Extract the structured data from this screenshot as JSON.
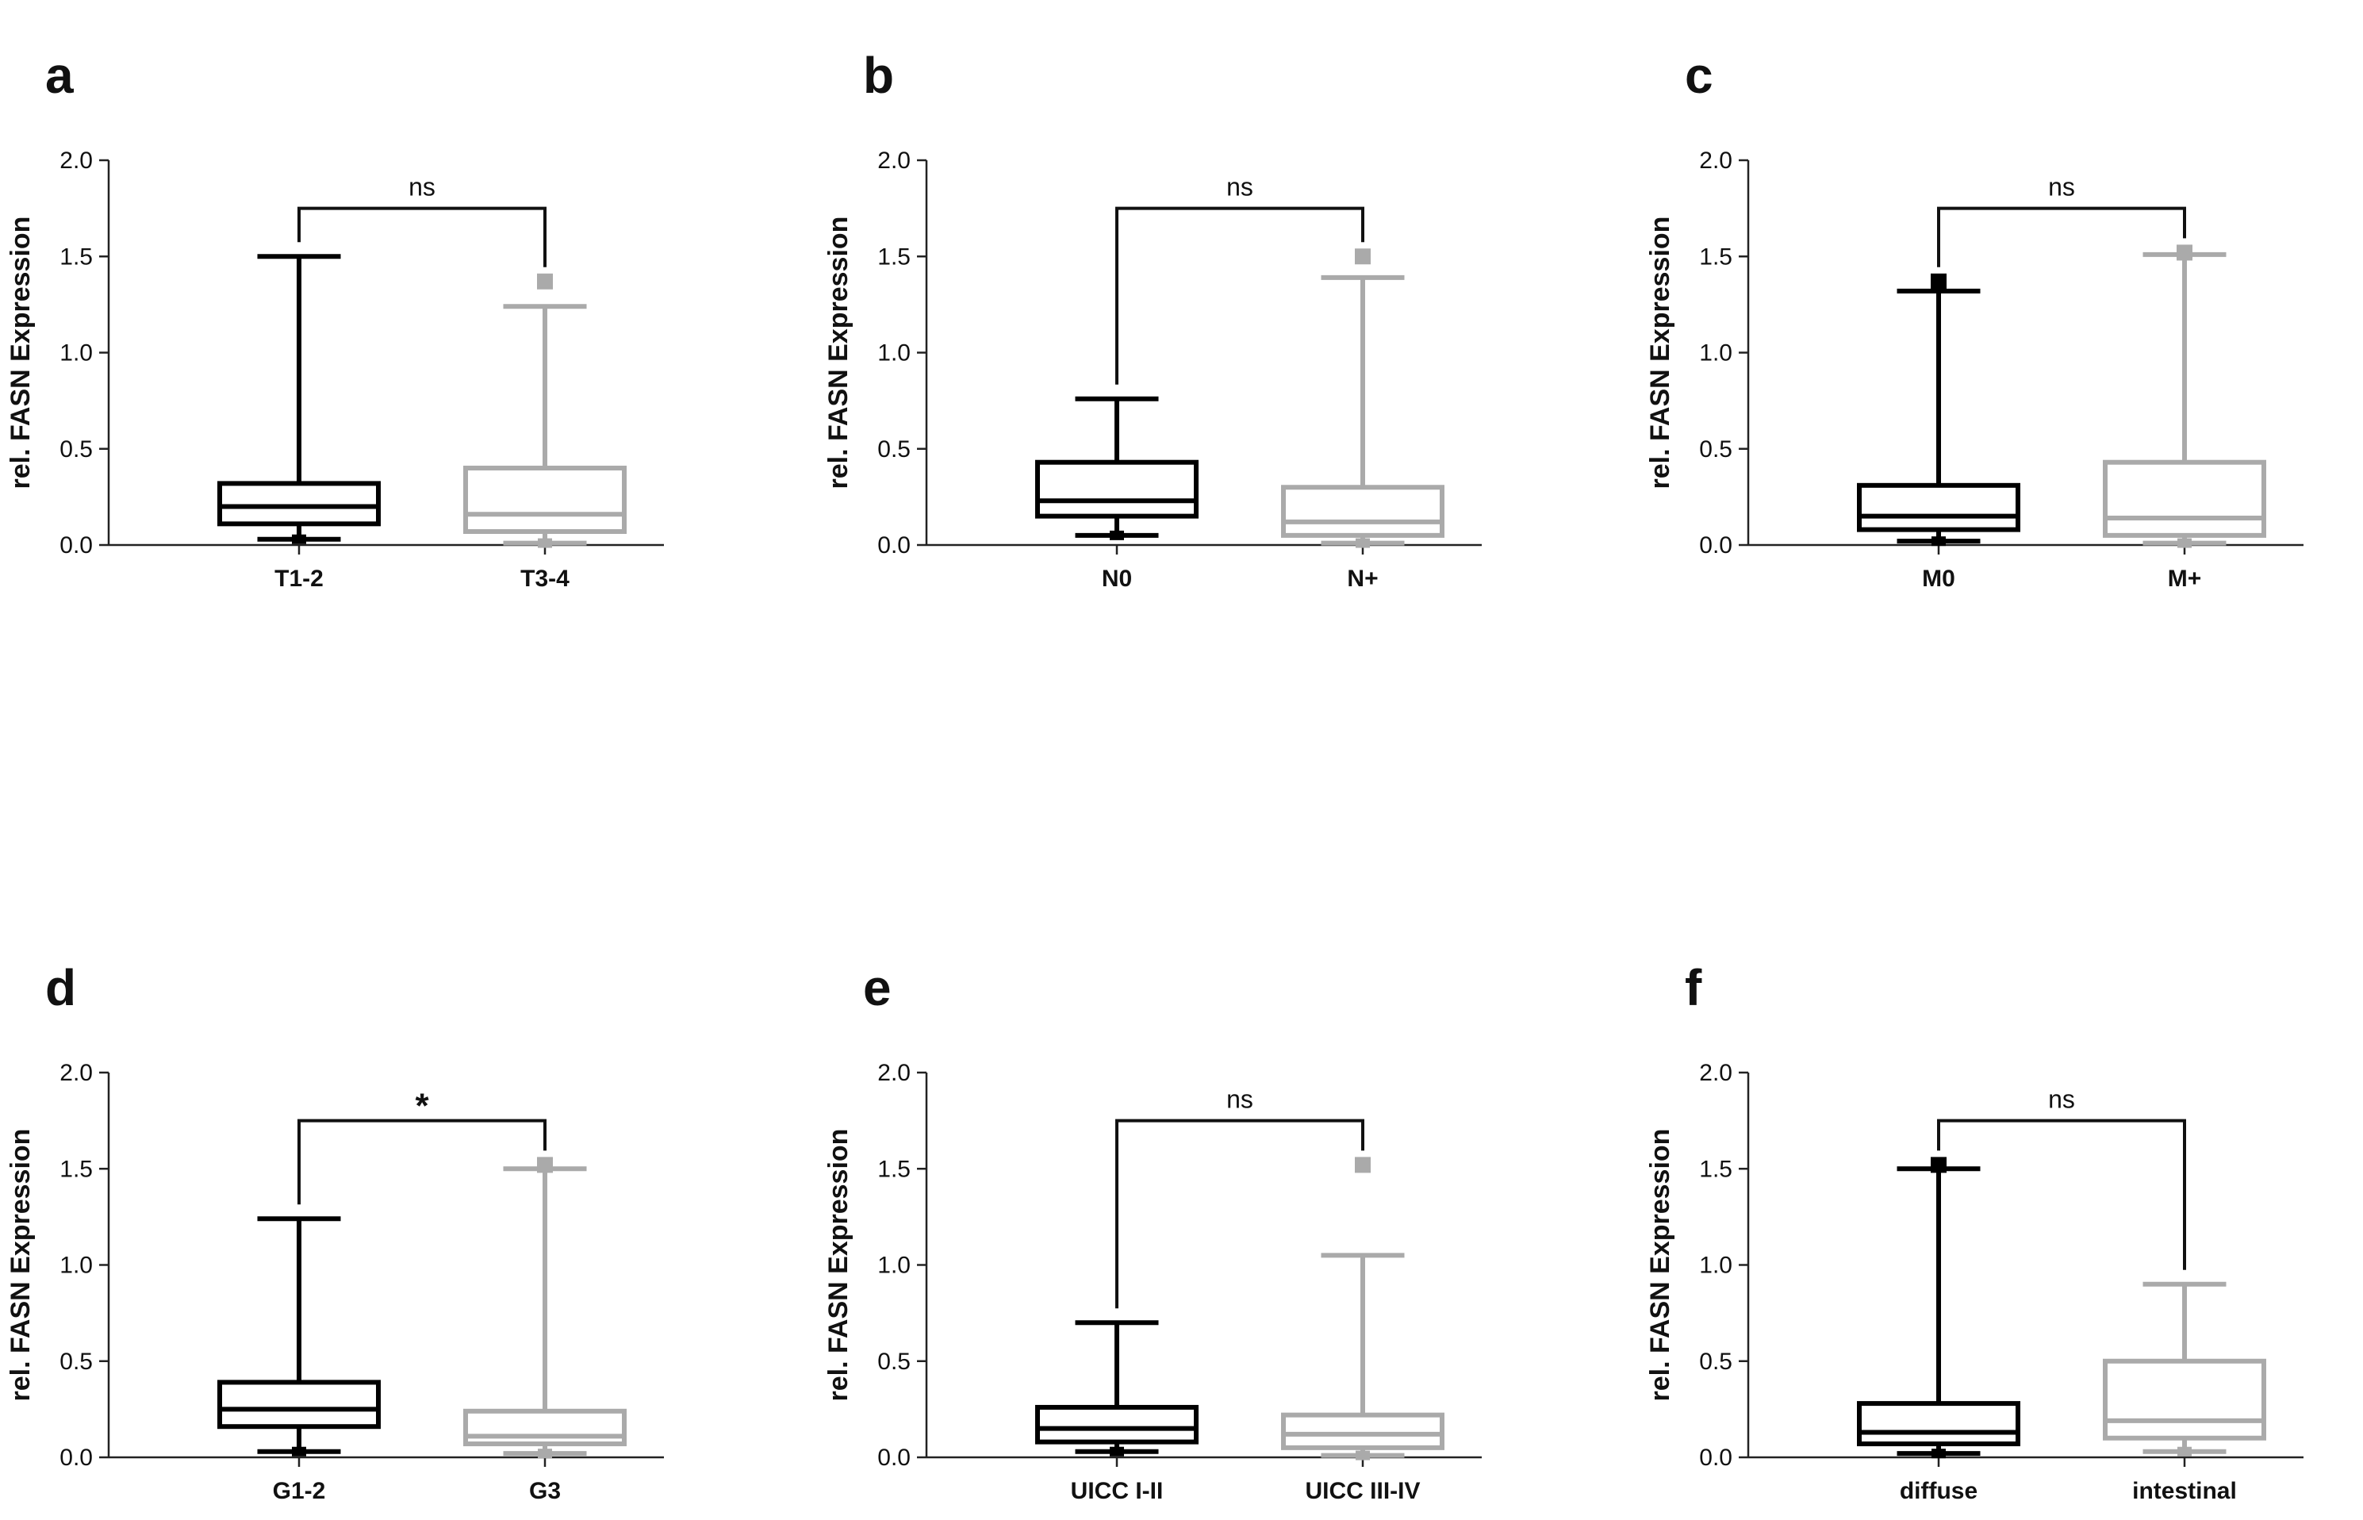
{
  "chart_data": [
    {
      "type": "boxplot",
      "panel": "a",
      "ylabel": "rel. FASN Expression",
      "ylim": [
        0,
        2.0
      ],
      "yticks": [
        "0.0",
        "0.5",
        "1.0",
        "1.5",
        "2.0"
      ],
      "significance": "ns",
      "groups": [
        {
          "name": "T1-2",
          "color": "#000000",
          "whisker_min": 0.03,
          "q1": 0.11,
          "median": 0.2,
          "q3": 0.32,
          "whisker_max": 1.5,
          "outliers": []
        },
        {
          "name": "T3-4",
          "color": "#aaaaaa",
          "whisker_min": 0.01,
          "q1": 0.07,
          "median": 0.16,
          "q3": 0.4,
          "whisker_max": 1.24,
          "outliers": [
            1.37
          ]
        }
      ]
    },
    {
      "type": "boxplot",
      "panel": "b",
      "ylabel": "rel. FASN Expression",
      "ylim": [
        0,
        2.0
      ],
      "yticks": [
        "0.0",
        "0.5",
        "1.0",
        "1.5",
        "2.0"
      ],
      "significance": "ns",
      "groups": [
        {
          "name": "N0",
          "color": "#000000",
          "whisker_min": 0.05,
          "q1": 0.15,
          "median": 0.23,
          "q3": 0.43,
          "whisker_max": 0.76,
          "outliers": []
        },
        {
          "name": "N+",
          "color": "#aaaaaa",
          "whisker_min": 0.01,
          "q1": 0.05,
          "median": 0.12,
          "q3": 0.3,
          "whisker_max": 1.39,
          "outliers": [
            1.5
          ]
        }
      ]
    },
    {
      "type": "boxplot",
      "panel": "c",
      "ylabel": "rel. FASN Expression",
      "ylim": [
        0,
        2.0
      ],
      "yticks": [
        "0.0",
        "0.5",
        "1.0",
        "1.5",
        "2.0"
      ],
      "significance": "ns",
      "groups": [
        {
          "name": "M0",
          "color": "#000000",
          "whisker_min": 0.02,
          "q1": 0.08,
          "median": 0.15,
          "q3": 0.31,
          "whisker_max": 1.32,
          "outliers": [
            1.37
          ]
        },
        {
          "name": "M+",
          "color": "#aaaaaa",
          "whisker_min": 0.01,
          "q1": 0.05,
          "median": 0.14,
          "q3": 0.43,
          "whisker_max": 1.51,
          "outliers": [
            1.52
          ]
        }
      ]
    },
    {
      "type": "boxplot",
      "panel": "d",
      "ylabel": "rel. FASN Expression",
      "ylim": [
        0,
        2.0
      ],
      "yticks": [
        "0.0",
        "0.5",
        "1.0",
        "1.5",
        "2.0"
      ],
      "significance": "*",
      "groups": [
        {
          "name": "G1-2",
          "color": "#000000",
          "whisker_min": 0.03,
          "q1": 0.16,
          "median": 0.25,
          "q3": 0.39,
          "whisker_max": 1.24,
          "outliers": []
        },
        {
          "name": "G3",
          "color": "#aaaaaa",
          "whisker_min": 0.02,
          "q1": 0.07,
          "median": 0.11,
          "q3": 0.24,
          "whisker_max": 1.5,
          "outliers": [
            1.52
          ]
        }
      ]
    },
    {
      "type": "boxplot",
      "panel": "e",
      "ylabel": "rel. FASN Expression",
      "ylim": [
        0,
        2.0
      ],
      "yticks": [
        "0.0",
        "0.5",
        "1.0",
        "1.5",
        "2.0"
      ],
      "significance": "ns",
      "groups": [
        {
          "name": "UICC I-II",
          "color": "#000000",
          "whisker_min": 0.03,
          "q1": 0.08,
          "median": 0.15,
          "q3": 0.26,
          "whisker_max": 0.7,
          "outliers": []
        },
        {
          "name": "UICC III-IV",
          "color": "#aaaaaa",
          "whisker_min": 0.01,
          "q1": 0.05,
          "median": 0.12,
          "q3": 0.22,
          "whisker_max": 1.05,
          "outliers": [
            1.52
          ]
        }
      ]
    },
    {
      "type": "boxplot",
      "panel": "f",
      "ylabel": "rel. FASN Expression",
      "ylim": [
        0,
        2.0
      ],
      "yticks": [
        "0.0",
        "0.5",
        "1.0",
        "1.5",
        "2.0"
      ],
      "significance": "ns",
      "groups": [
        {
          "name": "diffuse",
          "color": "#000000",
          "whisker_min": 0.02,
          "q1": 0.07,
          "median": 0.13,
          "q3": 0.28,
          "whisker_max": 1.5,
          "outliers": [
            1.52
          ]
        },
        {
          "name": "intestinal",
          "color": "#aaaaaa",
          "whisker_min": 0.03,
          "q1": 0.1,
          "median": 0.19,
          "q3": 0.5,
          "whisker_max": 0.9,
          "outliers": []
        }
      ]
    }
  ]
}
